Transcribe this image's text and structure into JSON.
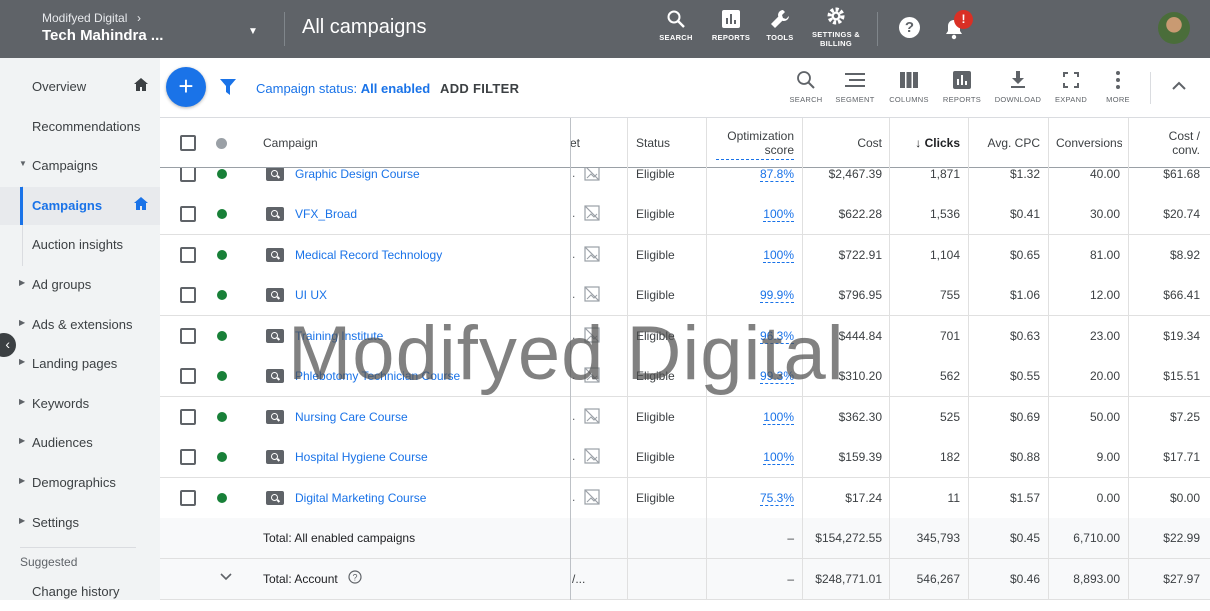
{
  "topbar": {
    "account_small": "Modifyed Digital",
    "account_name": "Tech Mahindra ...",
    "title": "All campaigns",
    "buttons": [
      "SEARCH",
      "REPORTS",
      "TOOLS",
      "SETTINGS &",
      "BILLING"
    ],
    "notification_badge": "!"
  },
  "sidebar": {
    "items": [
      "Overview",
      "Recommendations",
      "Campaigns",
      "Campaigns",
      "Auction insights",
      "Ad groups",
      "Ads & extensions",
      "Landing pages",
      "Keywords",
      "Audiences",
      "Demographics",
      "Settings"
    ],
    "suggested_label": "Suggested",
    "change_history": "Change history"
  },
  "filterbar": {
    "status_label": "Campaign status:",
    "status_value": "All enabled",
    "add_filter": "ADD FILTER",
    "tools": [
      "SEARCH",
      "SEGMENT",
      "COLUMNS",
      "REPORTS",
      "DOWNLOAD",
      "EXPAND",
      "MORE"
    ]
  },
  "table": {
    "headers": {
      "campaign": "Campaign",
      "budget": "et",
      "status": "Status",
      "opt1": "Optimization",
      "opt2": "score",
      "cost": "Cost",
      "clicks": "Clicks",
      "cpc": "Avg. CPC",
      "conv": "Conversions",
      "cpconv1": "Cost /",
      "cpconv2": "conv."
    },
    "rows": [
      {
        "name": "Graphic Design Course",
        "status": "Eligible",
        "opt": "87.8%",
        "cost": "$2,467.39",
        "clicks": "1,871",
        "cpc": "$1.32",
        "conv": "40.00",
        "cpconv": "$61.68"
      },
      {
        "name": "VFX_Broad",
        "status": "Eligible",
        "opt": "100%",
        "cost": "$622.28",
        "clicks": "1,536",
        "cpc": "$0.41",
        "conv": "30.00",
        "cpconv": "$20.74"
      },
      {
        "name": "Medical Record Technology",
        "status": "Eligible",
        "opt": "100%",
        "cost": "$722.91",
        "clicks": "1,104",
        "cpc": "$0.65",
        "conv": "81.00",
        "cpconv": "$8.92"
      },
      {
        "name": "UI UX",
        "status": "Eligible",
        "opt": "99.9%",
        "cost": "$796.95",
        "clicks": "755",
        "cpc": "$1.06",
        "conv": "12.00",
        "cpconv": "$66.41"
      },
      {
        "name": "Training Institute",
        "status": "Eligible",
        "opt": "96.3%",
        "cost": "$444.84",
        "clicks": "701",
        "cpc": "$0.63",
        "conv": "23.00",
        "cpconv": "$19.34"
      },
      {
        "name": "Phlebotomy Technician Course",
        "status": "Eligible",
        "opt": "99.3%",
        "cost": "$310.20",
        "clicks": "562",
        "cpc": "$0.55",
        "conv": "20.00",
        "cpconv": "$15.51"
      },
      {
        "name": "Nursing Care Course",
        "status": "Eligible",
        "opt": "100%",
        "cost": "$362.30",
        "clicks": "525",
        "cpc": "$0.69",
        "conv": "50.00",
        "cpconv": "$7.25"
      },
      {
        "name": "Hospital Hygiene Course",
        "status": "Eligible",
        "opt": "100%",
        "cost": "$159.39",
        "clicks": "182",
        "cpc": "$0.88",
        "conv": "9.00",
        "cpconv": "$17.71"
      },
      {
        "name": "Digital Marketing Course",
        "status": "Eligible",
        "opt": "75.3%",
        "cost": "$17.24",
        "clicks": "11",
        "cpc": "$1.57",
        "conv": "0.00",
        "cpconv": "$0.00"
      }
    ],
    "totals": [
      {
        "label": "Total: All enabled campaigns",
        "budget": "",
        "opt": "–",
        "cost": "$154,272.55",
        "clicks": "345,793",
        "cpc": "$0.45",
        "conv": "6,710.00",
        "cpconv": "$22.99"
      },
      {
        "label": "Total: Account",
        "budget": "/...",
        "opt": "–",
        "cost": "$248,771.01",
        "clicks": "546,267",
        "cpc": "$0.46",
        "conv": "8,893.00",
        "cpconv": "$27.97"
      }
    ]
  },
  "watermark": "Modifyed Digital"
}
